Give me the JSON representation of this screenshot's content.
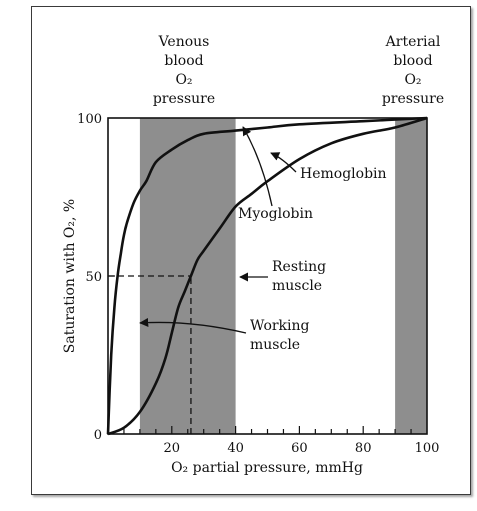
{
  "chart_data": {
    "type": "line",
    "xlabel": "O₂ partial pressure, mmHg",
    "ylabel": "Saturation with O₂, %",
    "xlim": [
      0,
      100
    ],
    "ylim": [
      0,
      100
    ],
    "x_ticks": [
      "20",
      "40",
      "60",
      "80",
      "100"
    ],
    "y_ticks": [
      "0",
      "50",
      "100"
    ],
    "grid": false,
    "legend": "none",
    "shaded_regions": [
      {
        "label_lines": [
          "Venous",
          "blood",
          "O₂",
          "pressure"
        ],
        "x_range": [
          10,
          40
        ],
        "color": "#8e8e8e"
      },
      {
        "label_lines": [
          "Arterial",
          "blood",
          "O₂",
          "pressure"
        ],
        "x_range": [
          90,
          100
        ],
        "color": "#8e8e8e"
      }
    ],
    "series": [
      {
        "name": "Myoglobin",
        "x": [
          0,
          1,
          2,
          3,
          4,
          5,
          6,
          8,
          10,
          12,
          15,
          20,
          25,
          30,
          40,
          50,
          60,
          80,
          100
        ],
        "y": [
          0,
          25,
          40,
          50,
          57,
          63,
          67,
          73,
          77,
          80,
          86,
          90,
          93,
          95,
          96,
          97,
          98,
          99,
          100
        ]
      },
      {
        "name": "Hemoglobin",
        "x": [
          0,
          5,
          10,
          15,
          18,
          20,
          22,
          24,
          26,
          28,
          30,
          35,
          40,
          45,
          50,
          60,
          70,
          80,
          90,
          100
        ],
        "y": [
          0,
          2,
          7,
          16,
          24,
          32,
          40,
          45,
          50,
          55,
          58,
          65,
          72,
          76,
          80,
          87,
          92,
          95,
          97,
          100
        ]
      }
    ],
    "reference_lines": [
      {
        "from": [
          0,
          50
        ],
        "to": [
          26,
          50
        ],
        "style": "dashed"
      },
      {
        "from": [
          26,
          0
        ],
        "to": [
          26,
          50
        ],
        "style": "dashed"
      }
    ],
    "annotations": [
      {
        "text": "Hemoglobin",
        "target_series": "Hemoglobin",
        "target_point": [
          55,
          88
        ]
      },
      {
        "text": "Myoglobin",
        "target_series": "Myoglobin",
        "target_point": [
          42,
          97
        ]
      },
      {
        "text_lines": [
          "Resting",
          "muscle"
        ],
        "target_point": [
          40,
          50
        ]
      },
      {
        "text_lines": [
          "Working",
          "muscle"
        ],
        "target_point": [
          8,
          34
        ]
      }
    ]
  }
}
